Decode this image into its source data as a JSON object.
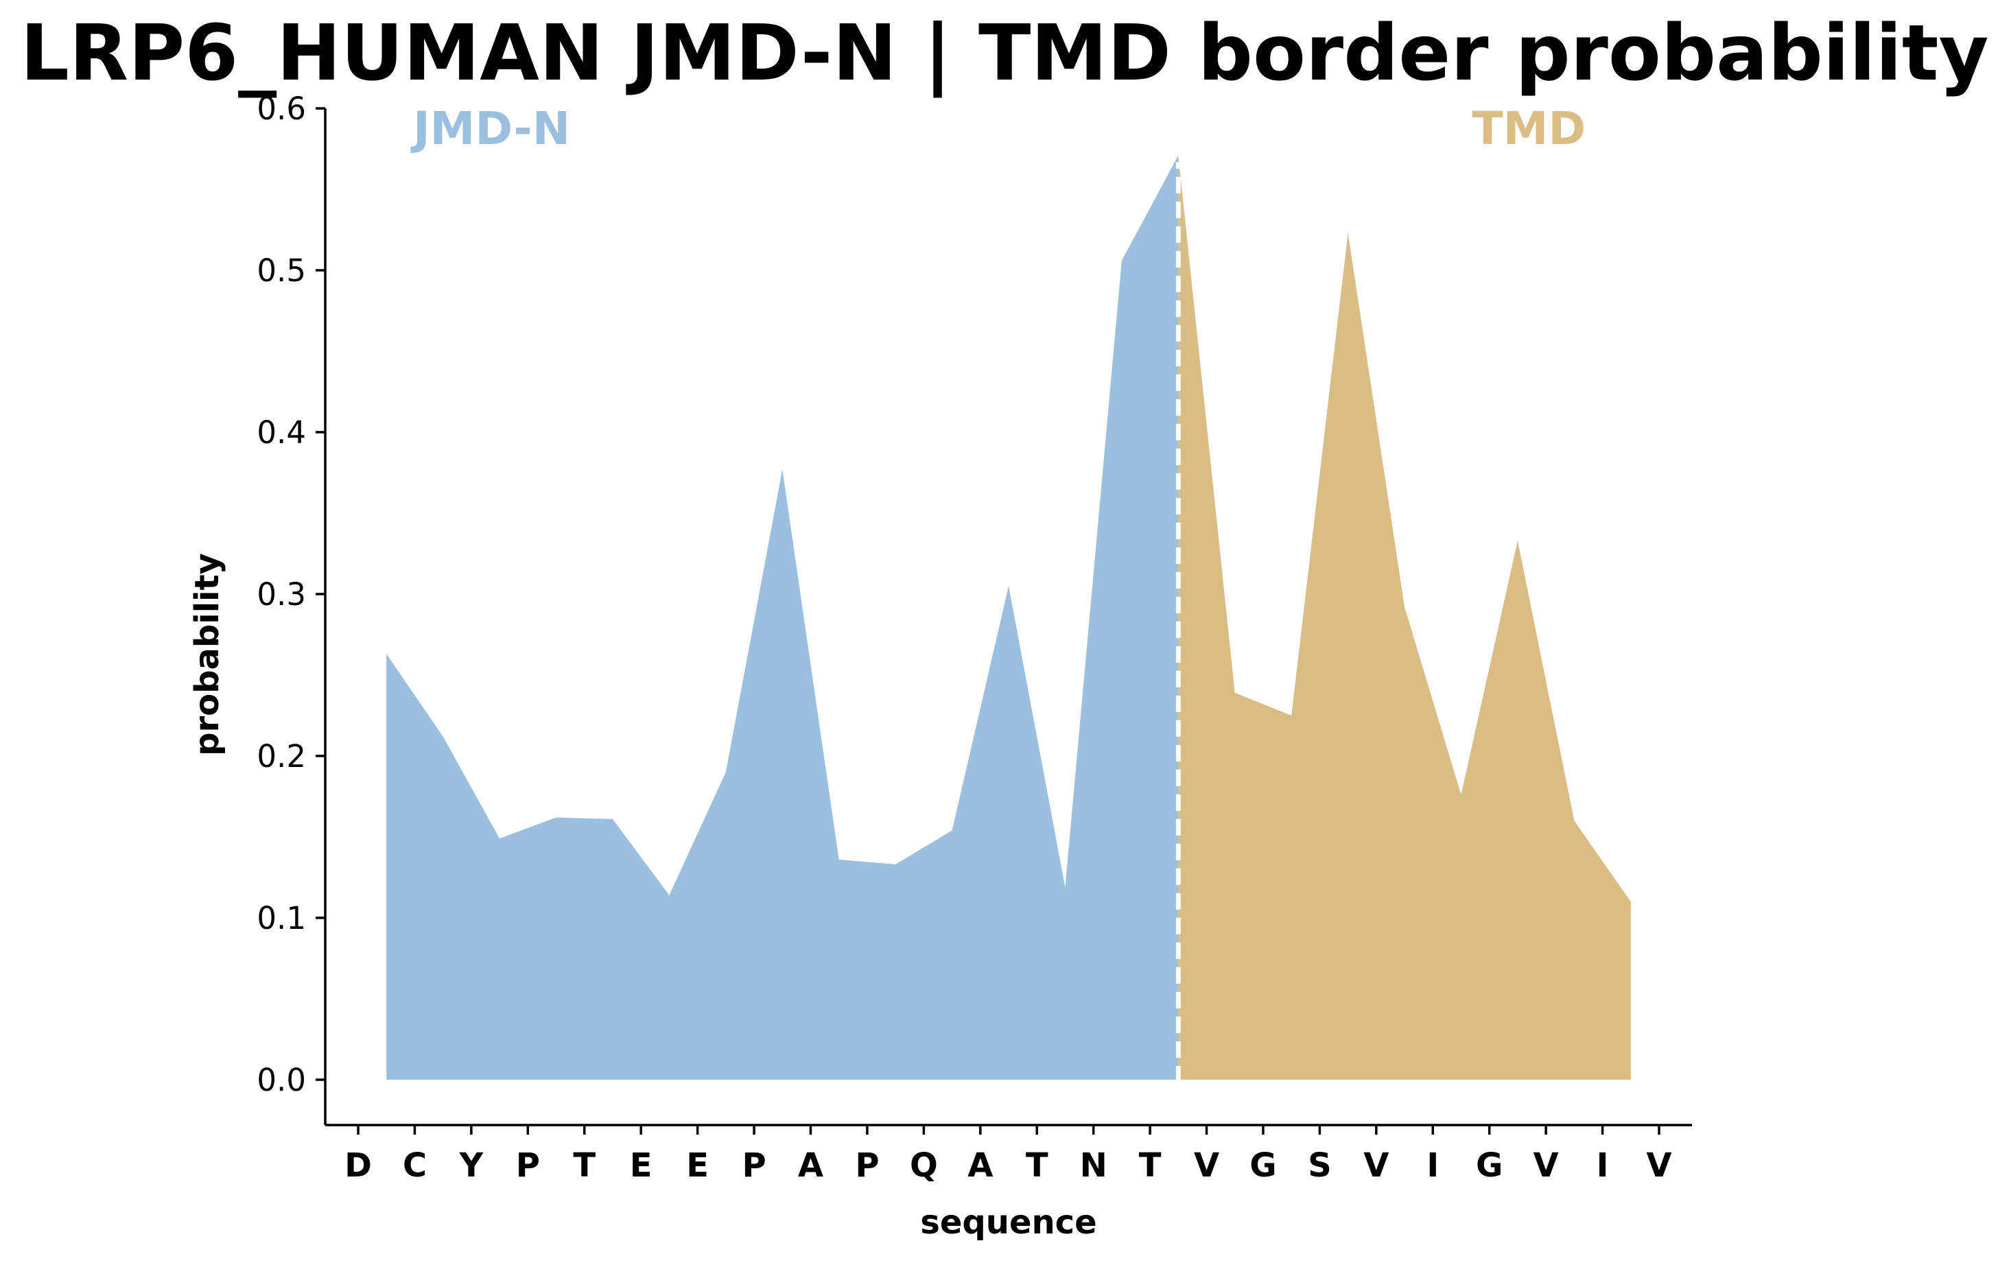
{
  "chart_data": {
    "type": "area",
    "title": "LRP6_HUMAN JMD-N | TMD border probability",
    "xlabel": "sequence",
    "ylabel": "probability",
    "categories": [
      "D",
      "C",
      "Y",
      "P",
      "T",
      "E",
      "E",
      "P",
      "A",
      "P",
      "Q",
      "A",
      "T",
      "N",
      "T",
      "V",
      "G",
      "S",
      "V",
      "I",
      "G",
      "V",
      "I",
      "V"
    ],
    "ylim": [
      -0.028,
      0.6
    ],
    "yticks": [
      "0.0",
      "0.1",
      "0.2",
      "0.3",
      "0.4",
      "0.5",
      "0.6"
    ],
    "grid": false,
    "border_between": [
      "T",
      "V"
    ],
    "series": [
      {
        "name": "JMD-N",
        "color": "#9bc0df",
        "points": [
          [
            0.5,
            0.263
          ],
          [
            1.5,
            0.212
          ],
          [
            2.5,
            0.149
          ],
          [
            3.5,
            0.162
          ],
          [
            4.5,
            0.161
          ],
          [
            5.5,
            0.114
          ],
          [
            6.5,
            0.19
          ],
          [
            7.5,
            0.377
          ],
          [
            8.5,
            0.136
          ],
          [
            9.5,
            0.133
          ],
          [
            10.5,
            0.154
          ],
          [
            11.5,
            0.305
          ],
          [
            12.5,
            0.119
          ],
          [
            13.5,
            0.506
          ],
          [
            14.5,
            0.571
          ]
        ]
      },
      {
        "name": "TMD",
        "color": "#d9bd84",
        "points": [
          [
            14.5,
            0.571
          ],
          [
            15.5,
            0.239
          ],
          [
            16.5,
            0.225
          ],
          [
            17.5,
            0.523
          ],
          [
            18.5,
            0.292
          ],
          [
            19.5,
            0.176
          ],
          [
            20.5,
            0.333
          ],
          [
            21.5,
            0.16
          ],
          [
            22.5,
            0.11
          ]
        ]
      }
    ]
  }
}
